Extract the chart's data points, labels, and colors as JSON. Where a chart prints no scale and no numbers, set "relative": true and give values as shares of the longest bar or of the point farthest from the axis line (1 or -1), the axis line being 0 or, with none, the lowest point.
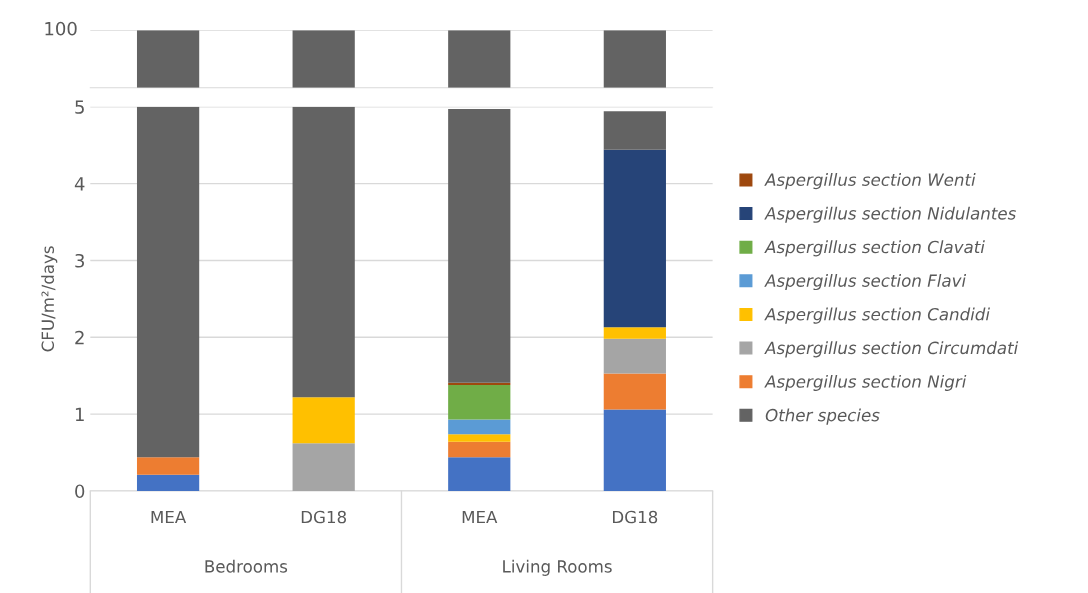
{
  "chart_data": [
    {
      "type": "bar",
      "categories": [
        null,
        null,
        null,
        null
      ],
      "stacked": true,
      "relative": true,
      "annotations": [
        "100"
      ],
      "series": [
        {
          "color": "#636363",
          "values": [
            1,
            1,
            1,
            1
          ]
        }
      ]
    },
    {
      "type": "bar",
      "categories": [
        "MEA",
        "DG18",
        "MEA",
        "DG18"
      ],
      "stacked": true,
      "ylabel": "CFU/m²/days",
      "ylim": [
        0,
        5
      ],
      "yticks": [
        0,
        1,
        2,
        3,
        4,
        5
      ],
      "grid": "y",
      "legend": "right",
      "annotations": [
        "Bedrooms",
        "Living Rooms"
      ],
      "series": [
        {
          "color": "#4472c4",
          "values": [
            0.21,
            0,
            0.44,
            1.06
          ]
        },
        {
          "name": "Aspergillus section Nigri",
          "color": "#ed7d31",
          "values": [
            0.23,
            0,
            0.2,
            0.47
          ]
        },
        {
          "name": "Aspergillus section Circumdati",
          "color": "#a5a5a5",
          "values": [
            0,
            0.62,
            0,
            0.45
          ]
        },
        {
          "name": "Aspergillus section Candidi",
          "color": "#ffc000",
          "values": [
            0,
            0.6,
            0.1,
            0.15
          ]
        },
        {
          "name": "Aspergillus section Flavi",
          "color": "#5b9bd5",
          "values": [
            0,
            0,
            0.19,
            0
          ]
        },
        {
          "name": "Aspergillus section Clavati",
          "color": "#70ad47",
          "values": [
            0,
            0,
            0.45,
            0
          ]
        },
        {
          "name": "Aspergillus section Nidulantes",
          "color": "#264478",
          "values": [
            0,
            0,
            0,
            2.31
          ]
        },
        {
          "name": "Aspergillus section Wenti",
          "color": "#9e480e",
          "values": [
            0,
            0,
            0.03,
            0
          ]
        },
        {
          "name": "Other species",
          "color": "#636363",
          "values": [
            4.56,
            3.78,
            3.56,
            0.5
          ]
        }
      ]
    }
  ]
}
